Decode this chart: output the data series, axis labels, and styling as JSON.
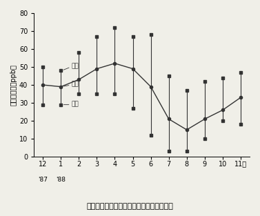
{
  "x_labels": [
    "12",
    "1",
    "2",
    "3",
    "4",
    "5",
    "6",
    "7",
    "8",
    "9",
    "10",
    "11月"
  ],
  "x_label_sub_0": "'87",
  "x_label_sub_1": "'88",
  "mean": [
    40,
    39,
    43,
    49,
    52,
    49,
    39,
    21,
    15,
    21,
    26,
    33
  ],
  "high": [
    50,
    48,
    58,
    67,
    72,
    67,
    68,
    45,
    37,
    42,
    44,
    47
  ],
  "low": [
    29,
    29,
    35,
    35,
    35,
    27,
    12,
    3,
    3,
    10,
    20,
    18
  ],
  "title": "オゾンの大気濃度（月平均値）の季節変動",
  "ylabel": "オゾン濃度（ppb）",
  "legend_max": "最高",
  "legend_mean": "平均",
  "legend_min": "最低",
  "ylim": [
    0,
    80
  ],
  "yticks": [
    0,
    10,
    20,
    30,
    40,
    50,
    60,
    70,
    80
  ],
  "line_color": "#333333",
  "bg_color": "#f0efe8"
}
